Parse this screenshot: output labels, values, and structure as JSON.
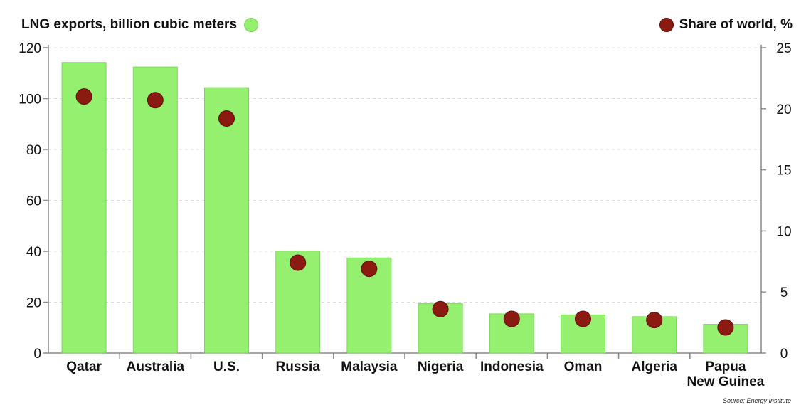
{
  "legend": {
    "bar_label": "LNG exports, billion cubic meters",
    "dot_label": "Share of world, %"
  },
  "source": "Source: Energy Institute",
  "chart_data": {
    "type": "bar",
    "categories": [
      "Qatar",
      "Australia",
      "U.S.",
      "Russia",
      "Malaysia",
      "Nigeria",
      "Indonesia",
      "Oman",
      "Algeria",
      "Papua New Guinea"
    ],
    "category_lines": [
      [
        "Qatar"
      ],
      [
        "Australia"
      ],
      [
        "U.S."
      ],
      [
        "Russia"
      ],
      [
        "Malaysia"
      ],
      [
        "Nigeria"
      ],
      [
        "Indonesia"
      ],
      [
        "Oman"
      ],
      [
        "Algeria"
      ],
      [
        "Papua",
        "New Guinea"
      ]
    ],
    "series": [
      {
        "name": "LNG exports, billion cubic meters",
        "axis": "left",
        "mark": "bar",
        "values": [
          114.2,
          112.4,
          104.3,
          40.1,
          37.4,
          19.4,
          15.4,
          15.0,
          14.3,
          11.3
        ]
      },
      {
        "name": "Share of world, %",
        "axis": "right",
        "mark": "dot",
        "values": [
          21.0,
          20.7,
          19.2,
          7.4,
          6.9,
          3.6,
          2.8,
          2.8,
          2.7,
          2.1
        ]
      }
    ],
    "y_left": {
      "min": 0,
      "max": 120,
      "ticks": [
        0,
        20,
        40,
        60,
        80,
        100,
        120
      ]
    },
    "y_right": {
      "min": 0,
      "max": 25,
      "ticks": [
        0,
        5,
        10,
        15,
        20,
        25
      ]
    },
    "grid": true,
    "colors": {
      "bar": "#94f06e",
      "bar_border": "#7fd45c",
      "dot": "#8b1a10",
      "dot_border": "#5e0f08",
      "axis": "#8a8a8a",
      "grid": "#dddddd"
    }
  }
}
